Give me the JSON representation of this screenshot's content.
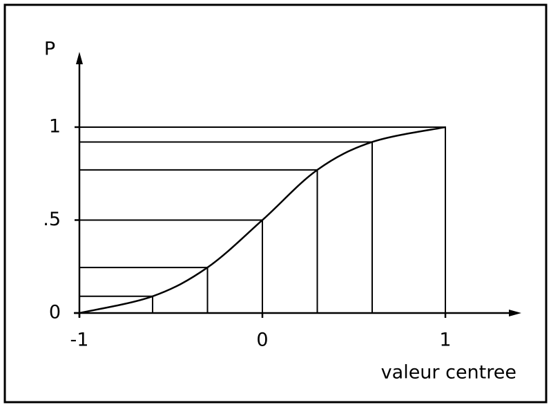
{
  "chart_data": {
    "type": "line",
    "x_label": "valeur centree",
    "y_label": "P",
    "x": [
      -1,
      -0.6,
      -0.3,
      0,
      0.3,
      0.6,
      1
    ],
    "values": [
      0,
      0.09,
      0.245,
      0.5,
      0.77,
      0.92,
      1
    ],
    "color": "#000000",
    "drop_lines": true,
    "xlim": [
      -1,
      1.415
    ],
    "ylim": [
      0,
      1.405
    ],
    "xticks": [
      -1,
      0,
      1
    ],
    "yticks": [
      0,
      {
        "value": 0.5,
        "label": ".5"
      },
      1
    ]
  }
}
